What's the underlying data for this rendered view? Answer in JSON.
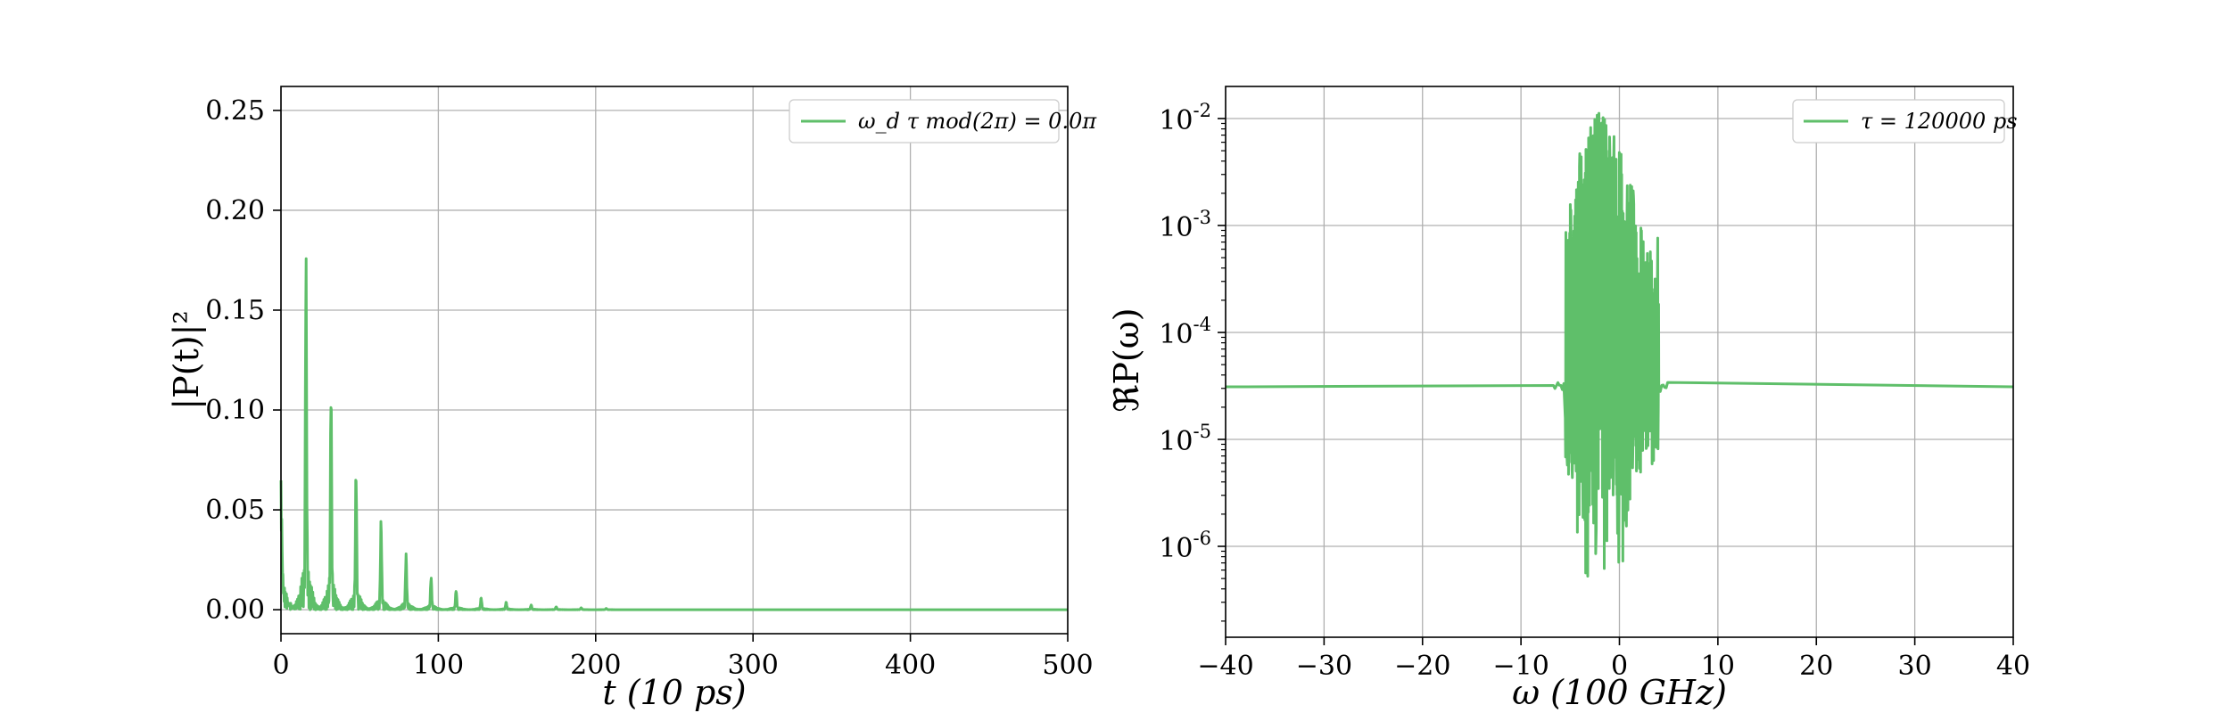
{
  "chart_data": [
    {
      "type": "line",
      "title": "",
      "xlabel": "t (10 ps)",
      "ylabel": "|P(t)|²",
      "xlim": [
        0,
        500
      ],
      "ylim": [
        -0.012,
        0.262
      ],
      "xticks": [
        0,
        100,
        200,
        300,
        400,
        500
      ],
      "xtick_labels": [
        "0",
        "100",
        "200",
        "300",
        "400",
        "500"
      ],
      "yticks": [
        0.0,
        0.05,
        0.1,
        0.15,
        0.2,
        0.25
      ],
      "ytick_labels": [
        "0.00",
        "0.05",
        "0.10",
        "0.15",
        "0.20",
        "0.25"
      ],
      "grid": true,
      "legend_position": "top-right",
      "color": "#5fbf6a",
      "series": [
        {
          "name": "ω_d τ mod(2π) = 0.0π",
          "peaks": [
            {
              "t": 0,
              "value": 0.041
            },
            {
              "t": 15.9,
              "value": 0.16
            },
            {
              "t": 31.8,
              "value": 0.102
            },
            {
              "t": 47.7,
              "value": 0.064
            },
            {
              "t": 63.6,
              "value": 0.04
            },
            {
              "t": 79.5,
              "value": 0.025
            },
            {
              "t": 95.4,
              "value": 0.015
            },
            {
              "t": 111.3,
              "value": 0.009
            },
            {
              "t": 127.2,
              "value": 0.0055
            },
            {
              "t": 143.1,
              "value": 0.0035
            },
            {
              "t": 159.0,
              "value": 0.0022
            },
            {
              "t": 174.9,
              "value": 0.0014
            },
            {
              "t": 190.8,
              "value": 0.0009
            },
            {
              "t": 206.7,
              "value": 0.0006
            }
          ],
          "baseline": 0.0
        }
      ]
    },
    {
      "type": "line",
      "title": "",
      "xlabel": "ω (100 GHz)",
      "ylabel": "ℜP(ω)",
      "xlim": [
        -40,
        40
      ],
      "ylim_log10": [
        -6.85,
        -1.7
      ],
      "yscale": "log",
      "xticks": [
        -40,
        -30,
        -20,
        -10,
        0,
        10,
        20,
        30,
        40
      ],
      "xtick_labels": [
        "−40",
        "−30",
        "−20",
        "−10",
        "0",
        "10",
        "20",
        "30",
        "40"
      ],
      "yticks_exp": [
        -6,
        -5,
        -4,
        -3,
        -2
      ],
      "ytick_labels": [
        "10-6",
        "10-5",
        "10-4",
        "10-3",
        "10-2"
      ],
      "grid": true,
      "legend_position": "top-right",
      "color": "#5fbf6a",
      "series": [
        {
          "name": "τ = 120000 ps",
          "baseline": 3.1e-05,
          "active_range": [
            -5.5,
            4.0
          ],
          "max_value": 0.012,
          "min_value": 2.5e-07
        }
      ]
    }
  ]
}
